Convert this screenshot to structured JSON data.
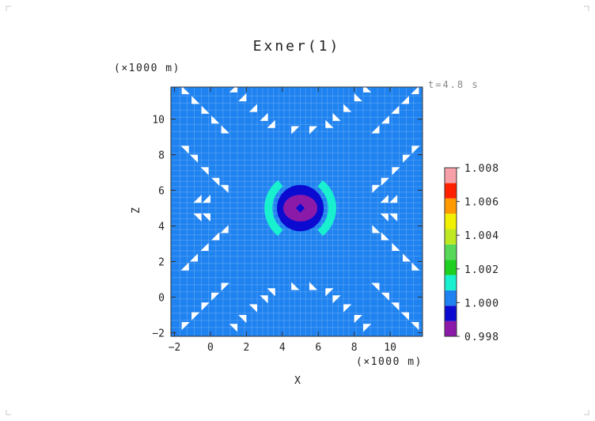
{
  "chart_data": {
    "type": "heatmap",
    "title": "Exner(1)",
    "xlabel": "X",
    "ylabel": "Z",
    "x_unit": "(×1000 m)",
    "z_unit": "(×1000 m)",
    "time_label": "t=4.8 s",
    "xlim": [
      -2.2,
      11.8
    ],
    "ylim": [
      -2.2,
      11.8
    ],
    "x_ticks": [
      -2,
      0,
      2,
      4,
      6,
      8,
      10
    ],
    "x_tick_labels": [
      "−2",
      "0",
      "2",
      "4",
      "6",
      "8",
      "10"
    ],
    "y_ticks": [
      -2,
      0,
      2,
      4,
      6,
      8,
      10
    ],
    "y_tick_labels": [
      "−2",
      "0",
      "2",
      "4",
      "6",
      "8",
      "10"
    ],
    "background_level": 1.0,
    "features": [
      {
        "kind": "ellipse",
        "cx": 5.0,
        "cz": 5.0,
        "rx": 1.3,
        "rz": 1.3,
        "value": 0.9995
      },
      {
        "kind": "ellipse",
        "cx": 5.0,
        "cz": 5.0,
        "rx": 0.95,
        "rz": 0.75,
        "value": 0.9985
      },
      {
        "kind": "ellipse",
        "cx": 5.0,
        "cz": 5.0,
        "rx": 0.7,
        "rz": 0.5,
        "value": 0.9975
      },
      {
        "kind": "diamond",
        "cx": 5.0,
        "cz": 5.0,
        "rx": 0.25,
        "rz": 0.25,
        "value": 0.9995
      },
      {
        "kind": "arc",
        "side": "left",
        "cx": 5.0,
        "cz": 5.0,
        "value": 1.0015
      },
      {
        "kind": "arc",
        "side": "right",
        "cx": 5.0,
        "cz": 5.0,
        "value": 1.0015
      }
    ],
    "colorbar": {
      "levels": [
        0.998,
        0.999,
        1.0,
        1.001,
        1.002,
        1.003,
        1.004,
        1.005,
        1.006,
        1.007,
        1.008
      ],
      "colors": [
        "#8c1aa8",
        "#0a0ad0",
        "#1e82f0",
        "#18f0d0",
        "#20d020",
        "#58d858",
        "#c0e820",
        "#f0f000",
        "#ff9a00",
        "#ff2000",
        "#f8a0a8"
      ],
      "tick_labels": [
        "0.998",
        "1.000",
        "1.002",
        "1.004",
        "1.006",
        "1.008"
      ]
    }
  }
}
